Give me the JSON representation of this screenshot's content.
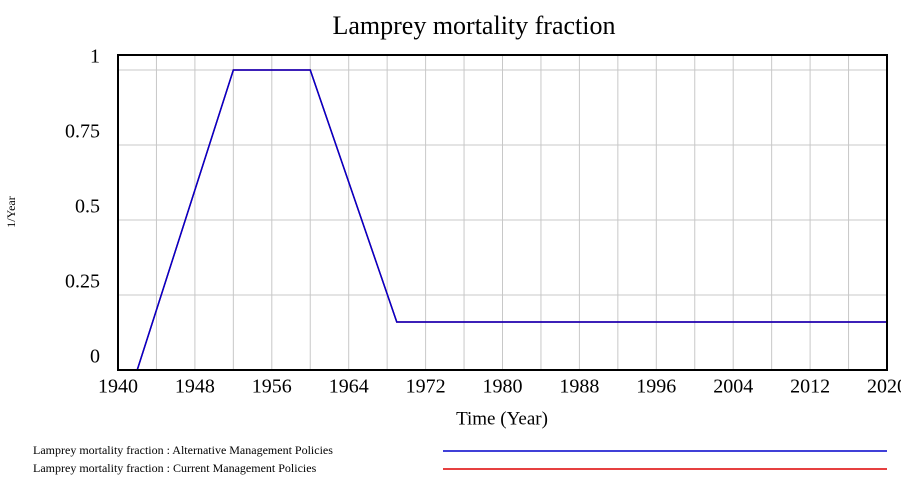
{
  "chart_data": {
    "type": "line",
    "title": "Lamprey mortality fraction",
    "xlabel": "Time (Year)",
    "ylabel": "1/Year",
    "x": [
      1940,
      1942,
      1952,
      1960,
      1969,
      2020
    ],
    "series": [
      {
        "name": "Lamprey mortality fraction : Alternative Management Policies",
        "color": "#0000cc",
        "values": [
          0,
          0,
          1,
          1,
          0.16,
          0.16
        ]
      },
      {
        "name": "Lamprey mortality fraction : Current Management Policies",
        "color": "#dd0000",
        "values": [
          0,
          0,
          1,
          1,
          0.16,
          0.16
        ]
      }
    ],
    "xlim": [
      1940,
      2020
    ],
    "xticks": [
      1940,
      1948,
      1956,
      1964,
      1972,
      1980,
      1988,
      1996,
      2004,
      2012,
      2020
    ],
    "xgrid": [
      1940,
      1944,
      1948,
      1952,
      1956,
      1960,
      1964,
      1968,
      1972,
      1976,
      1980,
      1984,
      1988,
      1992,
      1996,
      2000,
      2004,
      2008,
      2012,
      2016,
      2020
    ],
    "ylim": [
      0,
      1.05
    ],
    "yticks": [
      0,
      0.25,
      0.5,
      0.75,
      1
    ],
    "grid": true
  }
}
